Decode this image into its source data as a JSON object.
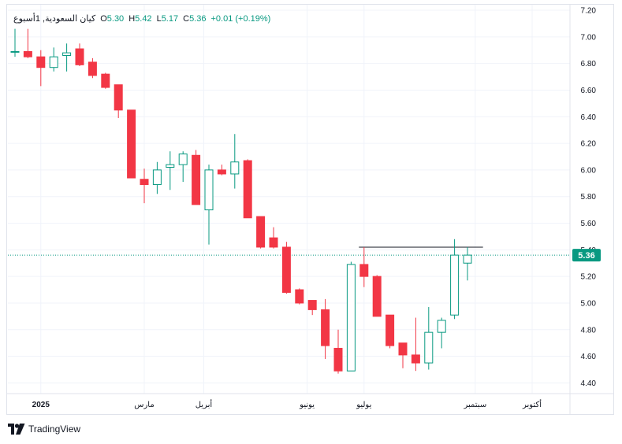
{
  "header": {
    "symbol_label": "كيان السعودية, 1أسبوع",
    "open_label": "O",
    "open_value": "5.30",
    "high_label": "H",
    "high_value": "5.42",
    "low_label": "L",
    "low_value": "5.17",
    "close_label": "C",
    "close_value": "5.36",
    "change": "+0.01 (+0.19%)"
  },
  "branding": {
    "name": "TradingView"
  },
  "colors": {
    "up": "#089981",
    "down": "#f23645",
    "grid": "#f0f3fa",
    "last_price_bg": "#089981"
  },
  "chart_data": {
    "type": "candlestick",
    "interval": "1 week",
    "ylim": [
      4.33,
      7.22
    ],
    "y_ticks": [
      "7.20",
      "7.00",
      "6.80",
      "6.60",
      "6.40",
      "6.20",
      "6.00",
      "5.80",
      "5.60",
      "5.40",
      "5.20",
      "5.00",
      "4.80",
      "4.60",
      "4.40"
    ],
    "x_ticks": [
      {
        "label": "2025",
        "index": 2.0,
        "bold": true
      },
      {
        "label": "مارس",
        "index": 10.0
      },
      {
        "label": "أبريل",
        "index": 14.6
      },
      {
        "label": "يونيو",
        "index": 22.6
      },
      {
        "label": "يوليو",
        "index": 27.0
      },
      {
        "label": "سبتمبر",
        "index": 35.6
      },
      {
        "label": "أكتوبر",
        "index": 40.0
      }
    ],
    "last_price": "5.36",
    "horizontal_line": {
      "value": 5.42,
      "from_index": 26.6,
      "to_index": 36.2
    },
    "candles": [
      {
        "o": 6.89,
        "h": 7.06,
        "l": 6.85,
        "c": 6.89
      },
      {
        "o": 6.89,
        "h": 7.06,
        "l": 6.84,
        "c": 6.85
      },
      {
        "o": 6.85,
        "h": 6.9,
        "l": 6.63,
        "c": 6.77
      },
      {
        "o": 6.77,
        "h": 6.92,
        "l": 6.74,
        "c": 6.85
      },
      {
        "o": 6.86,
        "h": 6.95,
        "l": 6.74,
        "c": 6.88
      },
      {
        "o": 6.91,
        "h": 6.95,
        "l": 6.78,
        "c": 6.79
      },
      {
        "o": 6.81,
        "h": 6.84,
        "l": 6.69,
        "c": 6.71
      },
      {
        "o": 6.72,
        "h": 6.73,
        "l": 6.61,
        "c": 6.62
      },
      {
        "o": 6.64,
        "h": 6.64,
        "l": 6.39,
        "c": 6.45
      },
      {
        "o": 6.45,
        "h": 6.45,
        "l": 5.94,
        "c": 5.94
      },
      {
        "o": 5.93,
        "h": 6.01,
        "l": 5.75,
        "c": 5.89
      },
      {
        "o": 5.89,
        "h": 6.06,
        "l": 5.82,
        "c": 6.0
      },
      {
        "o": 6.02,
        "h": 6.14,
        "l": 5.85,
        "c": 6.04
      },
      {
        "o": 6.04,
        "h": 6.14,
        "l": 5.91,
        "c": 6.12
      },
      {
        "o": 6.11,
        "h": 6.15,
        "l": 5.74,
        "c": 5.74
      },
      {
        "o": 5.7,
        "h": 6.04,
        "l": 5.44,
        "c": 6.0
      },
      {
        "o": 6.0,
        "h": 6.04,
        "l": 5.96,
        "c": 5.97
      },
      {
        "o": 5.97,
        "h": 6.27,
        "l": 5.86,
        "c": 6.06
      },
      {
        "o": 6.07,
        "h": 6.08,
        "l": 5.64,
        "c": 5.64
      },
      {
        "o": 5.65,
        "h": 5.65,
        "l": 5.41,
        "c": 5.42
      },
      {
        "o": 5.49,
        "h": 5.57,
        "l": 5.41,
        "c": 5.42
      },
      {
        "o": 5.42,
        "h": 5.46,
        "l": 5.07,
        "c": 5.08
      },
      {
        "o": 5.1,
        "h": 5.11,
        "l": 4.99,
        "c": 5.0
      },
      {
        "o": 5.02,
        "h": 5.02,
        "l": 4.91,
        "c": 4.95
      },
      {
        "o": 4.95,
        "h": 5.03,
        "l": 4.58,
        "c": 4.68
      },
      {
        "o": 4.66,
        "h": 4.8,
        "l": 4.47,
        "c": 4.49
      },
      {
        "o": 4.49,
        "h": 5.31,
        "l": 4.49,
        "c": 5.29
      },
      {
        "o": 5.29,
        "h": 5.42,
        "l": 5.12,
        "c": 5.2
      },
      {
        "o": 5.2,
        "h": 5.21,
        "l": 4.9,
        "c": 4.9
      },
      {
        "o": 4.91,
        "h": 4.91,
        "l": 4.66,
        "c": 4.68
      },
      {
        "o": 4.7,
        "h": 4.7,
        "l": 4.51,
        "c": 4.61
      },
      {
        "o": 4.61,
        "h": 4.89,
        "l": 4.49,
        "c": 4.55
      },
      {
        "o": 4.55,
        "h": 4.97,
        "l": 4.5,
        "c": 4.78
      },
      {
        "o": 4.78,
        "h": 4.89,
        "l": 4.66,
        "c": 4.87
      },
      {
        "o": 4.91,
        "h": 5.48,
        "l": 4.88,
        "c": 5.36
      },
      {
        "o": 5.3,
        "h": 5.42,
        "l": 5.17,
        "c": 5.36
      }
    ]
  }
}
